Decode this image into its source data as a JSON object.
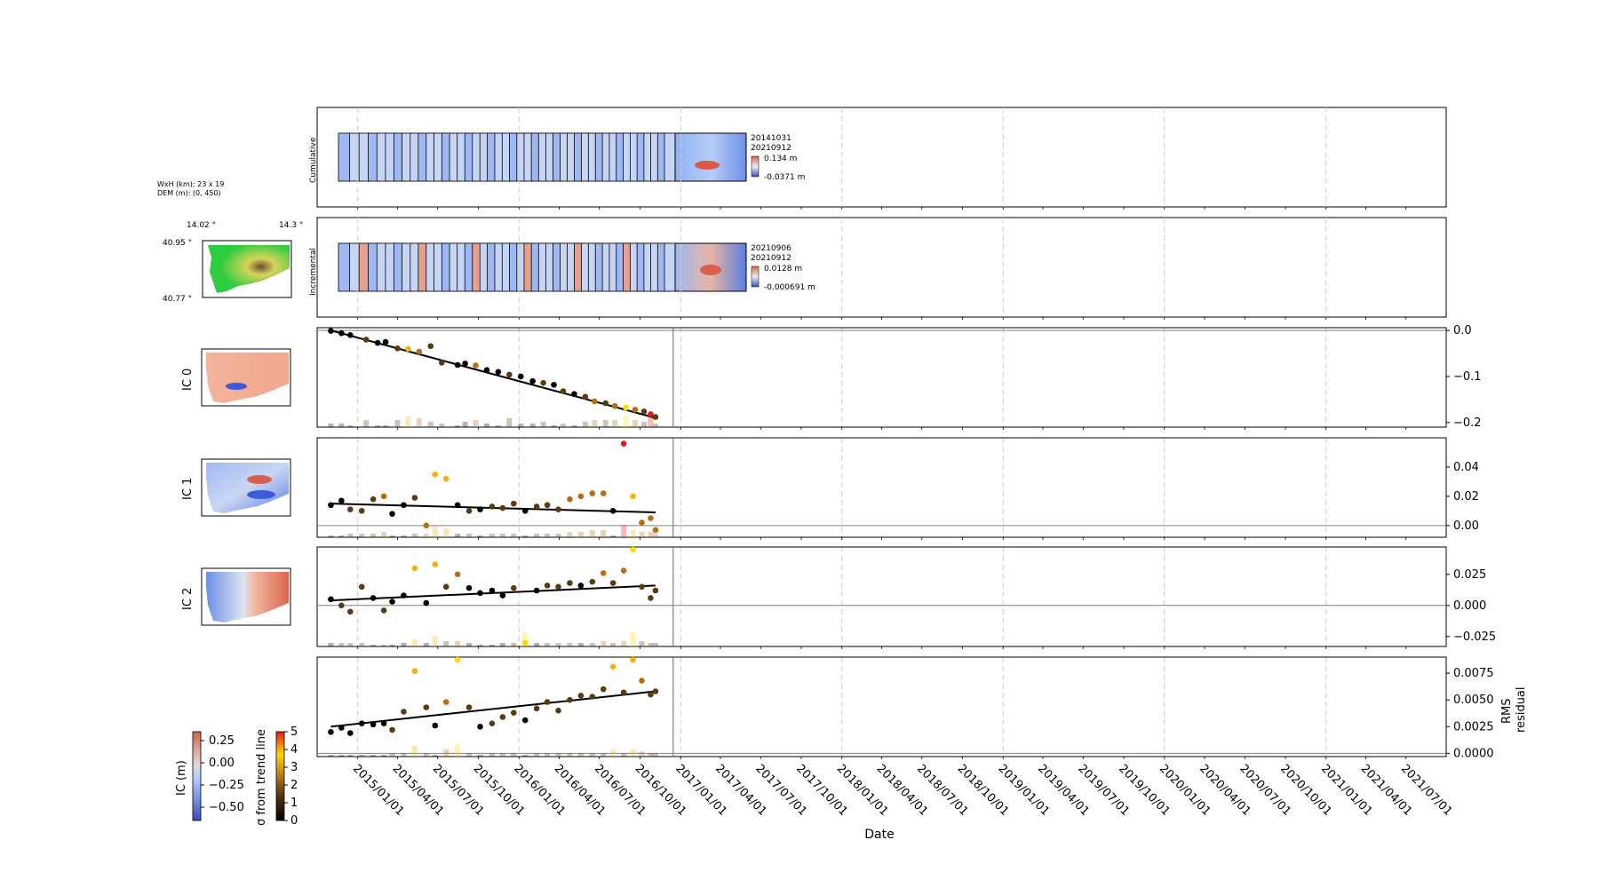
{
  "meta": {
    "wxh": "WxH (km): 23 x 19",
    "dem": "DEM (m): (0, 450)",
    "lon_ticks": [
      "14.02 °",
      "14.3 °"
    ],
    "lat_ticks": [
      "40.95 °",
      "40.77 °"
    ]
  },
  "strips": {
    "cumulative": {
      "label": "Cumulative",
      "date_top": "20141031",
      "date_bottom": "20210912",
      "cbar_max": "0.134 m",
      "cbar_min": "-0.0371 m"
    },
    "incremental": {
      "label": "Incremental",
      "date_top": "20210906",
      "date_bottom": "20210912",
      "cbar_max": "0.0128 m",
      "cbar_min": "-0.000691 m"
    }
  },
  "colorbars": {
    "ic": {
      "label": "IC (m)",
      "ticks": [
        "0.25",
        "0.00",
        "−0.25",
        "−0.50"
      ]
    },
    "sigma": {
      "label": "σ from trend line",
      "ticks": [
        "5",
        "4",
        "3",
        "2",
        "1",
        "0"
      ]
    }
  },
  "colors": {
    "trend_line": "#000000",
    "zero_line": "#808080",
    "grid_dashed": "#cccccc",
    "ic_positive": "#d6604d",
    "ic_negative": "#4a6fe3",
    "sigma_low": "#000000",
    "sigma_mid": "#b06a00",
    "sigma_high": "#ffee00",
    "dem_green": "#2ecc40"
  },
  "chart_data": [
    {
      "type": "scatter",
      "ylabel": "IC 0",
      "ylim": [
        -0.21,
        0.006
      ],
      "yticks": [
        "0.0",
        "−0.1",
        "−0.2"
      ],
      "x": [
        "2014/11/01",
        "2014/11/25",
        "2014/12/15",
        "2015/01/20",
        "2015/02/15",
        "2015/03/05",
        "2015/04/01",
        "2015/04/25",
        "2015/05/20",
        "2015/06/15",
        "2015/07/10",
        "2015/08/15",
        "2015/09/01",
        "2015/09/25",
        "2015/10/20",
        "2015/11/15",
        "2015/12/10",
        "2016/01/05",
        "2016/02/01",
        "2016/02/25",
        "2016/03/20",
        "2016/04/10",
        "2016/05/05",
        "2016/05/30",
        "2016/06/20",
        "2016/07/15",
        "2016/08/05",
        "2016/08/30",
        "2016/09/20",
        "2016/10/10",
        "2016/10/25",
        "2016/11/05"
      ],
      "y": [
        -0.001,
        -0.006,
        -0.01,
        -0.02,
        -0.027,
        -0.025,
        -0.039,
        -0.04,
        -0.046,
        -0.034,
        -0.07,
        -0.075,
        -0.072,
        -0.076,
        -0.086,
        -0.09,
        -0.096,
        -0.1,
        -0.11,
        -0.114,
        -0.118,
        -0.132,
        -0.138,
        -0.144,
        -0.154,
        -0.158,
        -0.164,
        -0.168,
        -0.172,
        -0.176,
        -0.182,
        -0.188
      ],
      "sigma": [
        0,
        0,
        0,
        1,
        0,
        0,
        1,
        3,
        2,
        1,
        1,
        0,
        0,
        2,
        0,
        0,
        1,
        0,
        0,
        1,
        0,
        1,
        0,
        1,
        2,
        1,
        2,
        4,
        2,
        1,
        5,
        1
      ],
      "trend": {
        "x": [
          "2014/11/01",
          "2016/11/05"
        ],
        "y": [
          0.0,
          -0.19
        ]
      },
      "zero_line": 0.0,
      "rms_residual": [
        1,
        1,
        0.5,
        2,
        0.5,
        0.5,
        2,
        3,
        2.5,
        1.5,
        1,
        0.5,
        1.5,
        2,
        1,
        0.5,
        2.5,
        1,
        1,
        1.5,
        0.5,
        1,
        0.5,
        1.5,
        2,
        2,
        2,
        3,
        2,
        1.5,
        3,
        1
      ]
    },
    {
      "type": "scatter",
      "ylabel": "IC 1",
      "ylim": [
        -0.008,
        0.06
      ],
      "yticks": [
        "0.04",
        "0.02",
        "0.00"
      ],
      "x": [
        "2014/11/01",
        "2014/11/25",
        "2014/12/15",
        "2015/01/10",
        "2015/02/05",
        "2015/03/01",
        "2015/03/20",
        "2015/04/15",
        "2015/05/10",
        "2015/06/05",
        "2015/06/25",
        "2015/07/20",
        "2015/08/15",
        "2015/09/10",
        "2015/10/05",
        "2015/11/01",
        "2015/11/25",
        "2015/12/20",
        "2016/01/15",
        "2016/02/10",
        "2016/03/05",
        "2016/03/30",
        "2016/04/25",
        "2016/05/20",
        "2016/06/15",
        "2016/07/10",
        "2016/08/01",
        "2016/08/25",
        "2016/09/15",
        "2016/10/05",
        "2016/10/25",
        "2016/11/05"
      ],
      "y": [
        0.014,
        0.017,
        0.011,
        0.01,
        0.018,
        0.02,
        0.008,
        0.014,
        0.019,
        0.0,
        0.035,
        0.032,
        0.014,
        0.01,
        0.011,
        0.013,
        0.012,
        0.015,
        0.01,
        0.013,
        0.014,
        0.011,
        0.018,
        0.02,
        0.022,
        0.022,
        0.01,
        0.056,
        0.02,
        0.002,
        0.005,
        -0.003
      ],
      "sigma": [
        0,
        0,
        1,
        1,
        1,
        2,
        0,
        0,
        1,
        2,
        3,
        3,
        0,
        1,
        0,
        1,
        1,
        1,
        0,
        1,
        1,
        1,
        2,
        2,
        2,
        2,
        0,
        5,
        3,
        2,
        2,
        2
      ],
      "trend": {
        "x": [
          "2014/11/01",
          "2016/11/05"
        ],
        "y": [
          0.015,
          0.009
        ]
      },
      "zero_line": 0.0,
      "rms_residual": [
        0.5,
        0.5,
        1,
        1,
        1,
        1.5,
        0.5,
        0.5,
        1,
        1,
        3,
        2.5,
        1,
        1,
        0.5,
        1,
        1,
        1,
        0.5,
        1,
        1,
        1,
        1.5,
        1.5,
        2,
        2,
        0.5,
        3.5,
        2,
        1.5,
        1.5,
        1
      ]
    },
    {
      "type": "scatter",
      "ylabel": "IC 2",
      "ylim": [
        -0.033,
        0.047
      ],
      "yticks": [
        "0.025",
        "0.000",
        "−0.025"
      ],
      "x": [
        "2014/11/01",
        "2014/11/25",
        "2014/12/15",
        "2015/01/10",
        "2015/02/05",
        "2015/03/01",
        "2015/03/20",
        "2015/04/15",
        "2015/05/10",
        "2015/06/05",
        "2015/06/25",
        "2015/07/20",
        "2015/08/15",
        "2015/09/10",
        "2015/10/05",
        "2015/11/01",
        "2015/11/25",
        "2015/12/20",
        "2016/01/15",
        "2016/02/10",
        "2016/03/05",
        "2016/03/30",
        "2016/04/25",
        "2016/05/20",
        "2016/06/15",
        "2016/07/10",
        "2016/08/01",
        "2016/08/25",
        "2016/09/15",
        "2016/10/05",
        "2016/10/25",
        "2016/11/05"
      ],
      "y": [
        0.005,
        0.0,
        -0.005,
        0.015,
        0.006,
        -0.004,
        0.003,
        0.008,
        0.03,
        0.002,
        0.033,
        0.015,
        0.025,
        0.014,
        0.01,
        0.012,
        0.008,
        0.014,
        -0.03,
        0.012,
        0.016,
        0.015,
        0.018,
        0.016,
        0.019,
        0.026,
        0.018,
        0.028,
        0.045,
        0.015,
        0.006,
        0.012
      ],
      "sigma": [
        0,
        1,
        1,
        1,
        0,
        1,
        0,
        0,
        3,
        0,
        3,
        1,
        2,
        0,
        0,
        0,
        0,
        1,
        4,
        0,
        1,
        1,
        1,
        0,
        1,
        2,
        1,
        2,
        4,
        1,
        1,
        1
      ],
      "trend": {
        "x": [
          "2014/11/01",
          "2016/11/05"
        ],
        "y": [
          0.004,
          0.016
        ]
      },
      "zero_line": 0.0,
      "rms_residual": [
        1,
        1,
        1,
        1,
        0.5,
        0.5,
        0.5,
        1,
        2,
        1,
        3,
        1.5,
        1.5,
        1,
        0.5,
        0.5,
        1,
        1,
        4,
        1,
        1,
        1,
        1,
        1,
        1,
        1.5,
        1,
        1.5,
        4,
        1.5,
        1,
        1
      ]
    },
    {
      "type": "scatter",
      "ylabel": "RMS\nresidual",
      "ylim": [
        -0.0003,
        0.009
      ],
      "yticks": [
        "0.0075",
        "0.0050",
        "0.0025",
        "0.0000"
      ],
      "x": [
        "2014/11/01",
        "2014/11/25",
        "2014/12/15",
        "2015/01/10",
        "2015/02/05",
        "2015/03/01",
        "2015/03/20",
        "2015/04/15",
        "2015/05/10",
        "2015/06/05",
        "2015/06/25",
        "2015/07/20",
        "2015/08/15",
        "2015/09/10",
        "2015/10/05",
        "2015/11/01",
        "2015/11/25",
        "2015/12/20",
        "2016/01/15",
        "2016/02/10",
        "2016/03/05",
        "2016/03/30",
        "2016/04/25",
        "2016/05/20",
        "2016/06/15",
        "2016/07/10",
        "2016/08/01",
        "2016/08/25",
        "2016/09/15",
        "2016/10/05",
        "2016/10/25",
        "2016/11/05"
      ],
      "y": [
        0.002,
        0.0024,
        0.0019,
        0.0028,
        0.0027,
        0.0028,
        0.0022,
        0.0039,
        0.0077,
        0.0043,
        0.0026,
        0.0048,
        0.009,
        0.0043,
        0.0025,
        0.0028,
        0.0034,
        0.0038,
        0.0031,
        0.0042,
        0.0048,
        0.004,
        0.005,
        0.0054,
        0.0053,
        0.006,
        0.0081,
        0.0057,
        0.0088,
        0.0068,
        0.0055,
        0.0058
      ],
      "sigma": [
        0,
        0,
        0,
        0,
        0,
        0,
        1,
        1,
        3,
        1,
        0,
        2,
        4,
        1,
        0,
        1,
        1,
        1,
        0,
        1,
        1,
        1,
        1,
        1,
        1,
        1,
        3,
        1,
        3,
        2,
        1,
        1
      ],
      "trend": {
        "x": [
          "2014/11/01",
          "2016/11/05"
        ],
        "y": [
          0.0025,
          0.0058
        ]
      },
      "zero_line": 0.0,
      "rms_residual": [
        0.5,
        0.5,
        0.5,
        0.5,
        0.5,
        0.5,
        1,
        1,
        3,
        1,
        0.5,
        2,
        3.5,
        1,
        0.5,
        1,
        1,
        1,
        0.5,
        1,
        1,
        1,
        1,
        1,
        1,
        1,
        2,
        1,
        2,
        1.5,
        1,
        1
      ]
    }
  ],
  "xaxis": {
    "label": "Date",
    "ticks": [
      "2015/01/01",
      "2015/04/01",
      "2015/07/01",
      "2015/10/01",
      "2016/01/01",
      "2016/04/01",
      "2016/07/01",
      "2016/10/01",
      "2017/01/01",
      "2017/04/01",
      "2017/07/01",
      "2017/10/01",
      "2018/01/01",
      "2018/04/01",
      "2018/07/01",
      "2018/10/01",
      "2019/01/01",
      "2019/04/01",
      "2019/07/01",
      "2019/10/01",
      "2020/01/01",
      "2020/04/01",
      "2020/07/01",
      "2020/10/01",
      "2021/01/01",
      "2021/04/01",
      "2021/07/01"
    ],
    "range": [
      "2014/10/01",
      "2021/09/30"
    ],
    "dashed_grid_years": [
      "2015/01/01",
      "2016/01/01",
      "2017/01/01",
      "2018/01/01",
      "2019/01/01",
      "2020/01/01",
      "2021/01/01"
    ],
    "solid_vline": "2016/12/15"
  }
}
